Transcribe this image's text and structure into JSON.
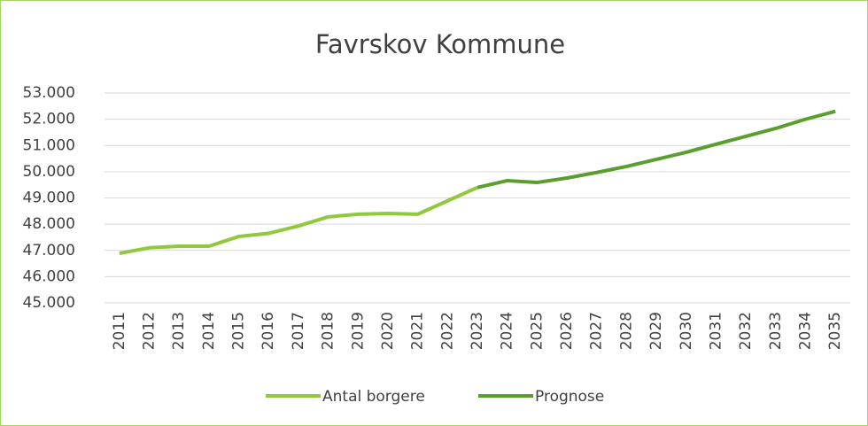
{
  "chart_data": {
    "type": "line",
    "title": "Favrskov Kommune",
    "categories": [
      "2011",
      "2012",
      "2013",
      "2014",
      "2015",
      "2016",
      "2017",
      "2018",
      "2019",
      "2020",
      "2021",
      "2022",
      "2023",
      "2024",
      "2025",
      "2026",
      "2027",
      "2028",
      "2029",
      "2030",
      "2031",
      "2032",
      "2033",
      "2034",
      "2035"
    ],
    "series": [
      {
        "name": "Antal borgere",
        "color": "#92c83e",
        "values": [
          46890,
          47100,
          47160,
          47160,
          47530,
          47650,
          47930,
          48280,
          48380,
          48410,
          48380,
          48890,
          49400,
          null,
          null,
          null,
          null,
          null,
          null,
          null,
          null,
          null,
          null,
          null,
          null
        ]
      },
      {
        "name": "Prognose",
        "color": "#5a9e2f",
        "values": [
          null,
          null,
          null,
          null,
          null,
          null,
          null,
          null,
          null,
          null,
          null,
          null,
          49400,
          49660,
          49590,
          49760,
          49970,
          50200,
          50470,
          50740,
          51050,
          51350,
          51650,
          52000,
          52300
        ]
      }
    ],
    "ylim": [
      45000,
      53000
    ],
    "yticks": [
      {
        "value": 45000,
        "label": "45.000"
      },
      {
        "value": 46000,
        "label": "46.000"
      },
      {
        "value": 47000,
        "label": "47.000"
      },
      {
        "value": 48000,
        "label": "48.000"
      },
      {
        "value": 49000,
        "label": "49.000"
      },
      {
        "value": 50000,
        "label": "50.000"
      },
      {
        "value": 51000,
        "label": "51.000"
      },
      {
        "value": 52000,
        "label": "52.000"
      },
      {
        "value": 53000,
        "label": "53.000"
      }
    ],
    "grid": true,
    "legend": "bottom"
  }
}
